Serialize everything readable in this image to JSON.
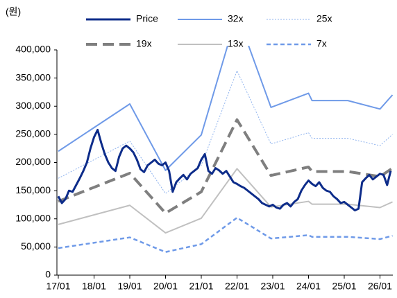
{
  "chart_data": {
    "type": "line",
    "unit_label": "(원)",
    "xlim": [
      2017,
      2026.35
    ],
    "xticks": [
      {
        "value": 2017,
        "label": "17/01"
      },
      {
        "value": 2018,
        "label": "18/01"
      },
      {
        "value": 2019,
        "label": "19/01"
      },
      {
        "value": 2020,
        "label": "20/01"
      },
      {
        "value": 2021,
        "label": "21/01"
      },
      {
        "value": 2022,
        "label": "22/01"
      },
      {
        "value": 2023,
        "label": "23/01"
      },
      {
        "value": 2024,
        "label": "24/01"
      },
      {
        "value": 2025,
        "label": "25/01"
      },
      {
        "value": 2026,
        "label": "26/01"
      }
    ],
    "ylim": [
      0,
      400000
    ],
    "yticks": [
      0,
      {
        "value": 50000,
        "label": "50,000"
      },
      {
        "value": 100000,
        "label": "100,000"
      },
      {
        "value": 150000,
        "label": "150,000"
      },
      {
        "value": 200000,
        "label": "200,000"
      },
      {
        "value": 250000,
        "label": "250,000"
      },
      {
        "value": 300000,
        "label": "300,000"
      },
      {
        "value": 350000,
        "label": "350,000"
      },
      {
        "value": 400000,
        "label": "400,000"
      }
    ],
    "grid": false,
    "legend": "top",
    "series": [
      {
        "name": "Price",
        "color": "#0d2c8a",
        "line_style": "bold",
        "x": [
          2017.0,
          2017.1,
          2017.2,
          2017.3,
          2017.4,
          2017.5,
          2017.6,
          2017.7,
          2017.8,
          2017.9,
          2018.0,
          2018.1,
          2018.2,
          2018.3,
          2018.4,
          2018.5,
          2018.6,
          2018.7,
          2018.8,
          2018.9,
          2019.0,
          2019.1,
          2019.2,
          2019.3,
          2019.4,
          2019.5,
          2019.6,
          2019.7,
          2019.8,
          2019.9,
          2020.0,
          2020.1,
          2020.2,
          2020.3,
          2020.4,
          2020.5,
          2020.6,
          2020.7,
          2020.8,
          2020.9,
          2021.0,
          2021.1,
          2021.2,
          2021.3,
          2021.4,
          2021.5,
          2021.6,
          2021.7,
          2021.8,
          2021.9,
          2022.0,
          2022.1,
          2022.2,
          2022.3,
          2022.4,
          2022.5,
          2022.6,
          2022.7,
          2022.8,
          2022.9,
          2023.0,
          2023.1,
          2023.2,
          2023.3,
          2023.4,
          2023.5,
          2023.6,
          2023.7,
          2023.8,
          2023.9,
          2024.0,
          2024.1,
          2024.2,
          2024.3,
          2024.4,
          2024.5,
          2024.6,
          2024.7,
          2024.8,
          2024.9,
          2025.0,
          2025.1,
          2025.2,
          2025.3,
          2025.4,
          2025.5,
          2025.6,
          2025.7,
          2025.8,
          2025.9,
          2026.0,
          2026.1,
          2026.2,
          2026.3
        ],
        "values": [
          140000,
          128000,
          135000,
          150000,
          148000,
          160000,
          172000,
          185000,
          200000,
          225000,
          245000,
          258000,
          235000,
          215000,
          200000,
          190000,
          185000,
          210000,
          225000,
          230000,
          225000,
          218000,
          205000,
          188000,
          183000,
          195000,
          200000,
          205000,
          198000,
          195000,
          200000,
          185000,
          148000,
          165000,
          172000,
          178000,
          170000,
          180000,
          185000,
          190000,
          205000,
          215000,
          185000,
          180000,
          190000,
          186000,
          180000,
          185000,
          175000,
          165000,
          162000,
          158000,
          155000,
          150000,
          145000,
          140000,
          135000,
          128000,
          125000,
          122000,
          125000,
          120000,
          118000,
          125000,
          128000,
          122000,
          130000,
          135000,
          150000,
          160000,
          168000,
          162000,
          158000,
          165000,
          155000,
          150000,
          148000,
          140000,
          135000,
          128000,
          130000,
          125000,
          120000,
          115000,
          118000,
          165000,
          172000,
          178000,
          170000,
          175000,
          180000,
          178000,
          160000,
          185000
        ]
      },
      {
        "name": "32x",
        "color": "#6f9ae8",
        "line_style": "solid",
        "x": [
          2017.0,
          2019.0,
          2020.0,
          2021.0,
          2022.0,
          2022.95,
          2024.0,
          2024.1,
          2025.1,
          2026.0,
          2026.35
        ],
        "values": [
          220000,
          304000,
          186000,
          249000,
          464000,
          298000,
          323000,
          310000,
          310000,
          295000,
          320000
        ]
      },
      {
        "name": "25x",
        "color": "#8fb3ee",
        "line_style": "dotted",
        "x": [
          2017.0,
          2019.0,
          2020.0,
          2021.0,
          2022.0,
          2022.95,
          2024.0,
          2024.1,
          2025.1,
          2026.0,
          2026.35
        ],
        "values": [
          172000,
          238000,
          145000,
          195000,
          363000,
          233000,
          253000,
          243000,
          243000,
          230000,
          250000
        ]
      },
      {
        "name": "19x",
        "color": "#7f7f7f",
        "line_style": "bold-dashed",
        "x": [
          2017.0,
          2019.0,
          2020.0,
          2021.0,
          2022.0,
          2022.95,
          2024.0,
          2024.1,
          2025.1,
          2026.0,
          2026.35
        ],
        "values": [
          131000,
          181000,
          110000,
          148000,
          276000,
          177000,
          192000,
          184000,
          184000,
          175000,
          190000
        ]
      },
      {
        "name": "13x",
        "color": "#c0c0c0",
        "line_style": "solid",
        "x": [
          2017.0,
          2019.0,
          2020.0,
          2021.0,
          2022.0,
          2022.95,
          2024.0,
          2024.1,
          2025.1,
          2026.0,
          2026.35
        ],
        "values": [
          90000,
          124000,
          75000,
          101000,
          189000,
          121000,
          131000,
          126000,
          126000,
          120000,
          130000
        ]
      },
      {
        "name": "7x",
        "color": "#6f9ae8",
        "line_style": "dashed",
        "x": [
          2017.0,
          2019.0,
          2020.0,
          2021.0,
          2022.0,
          2022.95,
          2024.0,
          2024.1,
          2025.1,
          2026.0,
          2026.35
        ],
        "values": [
          48000,
          67000,
          41000,
          55000,
          102000,
          65000,
          71000,
          68000,
          68000,
          64000,
          70000
        ]
      }
    ]
  }
}
